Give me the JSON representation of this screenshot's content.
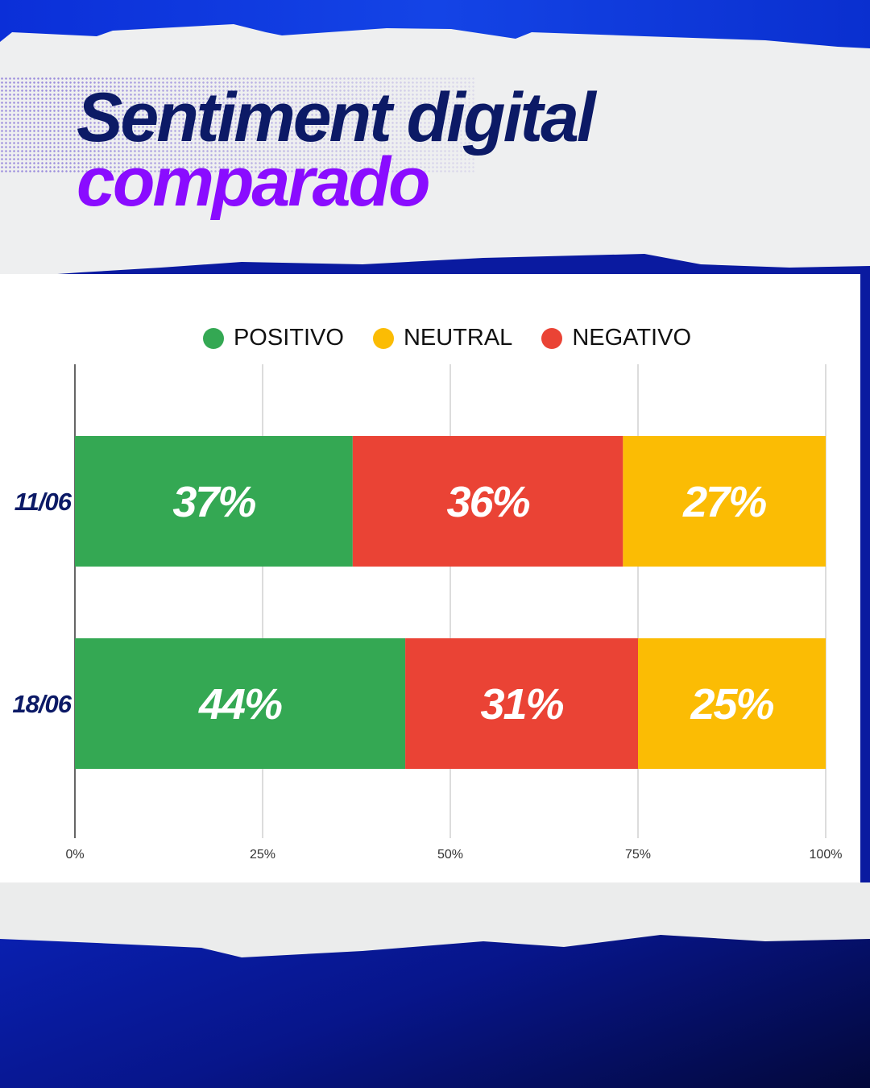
{
  "title": {
    "line1": "Sentiment digital",
    "line2": "comparado"
  },
  "colors": {
    "positivo": "#34a853",
    "neutral": "#fbbc04",
    "negativo": "#ea4335"
  },
  "chart_data": {
    "type": "bar",
    "orientation": "horizontal-stacked-100",
    "title": "Sentiment digital comparado",
    "legend": [
      "POSITIVO",
      "NEUTRAL",
      "NEGATIVO"
    ],
    "legend_position": "top",
    "categories": [
      "11/06",
      "18/06"
    ],
    "series": [
      {
        "name": "POSITIVO",
        "key": "positivo",
        "values": [
          37,
          44
        ],
        "labels": [
          "37%",
          "44%"
        ]
      },
      {
        "name": "NEGATIVO",
        "key": "negativo",
        "values": [
          36,
          31
        ],
        "labels": [
          "36%",
          "31%"
        ]
      },
      {
        "name": "NEUTRAL",
        "key": "neutral",
        "values": [
          27,
          25
        ],
        "labels": [
          "27%",
          "25%"
        ]
      }
    ],
    "xlim": [
      0,
      100
    ],
    "xticks": [
      "0%",
      "25%",
      "50%",
      "75%",
      "100%"
    ],
    "grid": true
  }
}
